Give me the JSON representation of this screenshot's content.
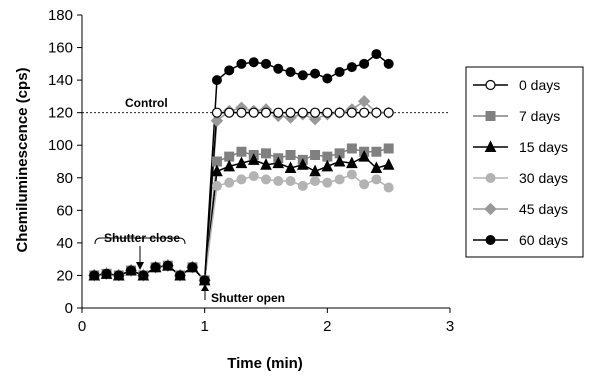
{
  "chart_data": {
    "type": "line",
    "xlabel": "Time (min)",
    "ylabel": "Chemiluminescence (cps)",
    "xlim": [
      0,
      3
    ],
    "ylim": [
      0,
      180
    ],
    "xticks": [
      0,
      1,
      2,
      3
    ],
    "yticks": [
      0,
      20,
      40,
      60,
      80,
      100,
      120,
      140,
      160,
      180
    ],
    "grid": false,
    "legend_position": "right",
    "reference_line": {
      "y": 120,
      "label": "Control",
      "style": "dashed"
    },
    "annotations": [
      {
        "text": "Shutter close",
        "x": 0.5,
        "y": 22
      },
      {
        "text": "Shutter open",
        "x": 1.0,
        "y": 17
      }
    ],
    "x": [
      0.1,
      0.2,
      0.3,
      0.4,
      0.5,
      0.6,
      0.7,
      0.8,
      0.9,
      1.0,
      1.1,
      1.2,
      1.3,
      1.4,
      1.5,
      1.6,
      1.7,
      1.8,
      1.9,
      2.0,
      2.1,
      2.2,
      2.3,
      2.4,
      2.5
    ],
    "series": [
      {
        "name": "0 days",
        "color": "#000000",
        "marker": "circle-open",
        "values": [
          20,
          21,
          20,
          23,
          20,
          25,
          26,
          20,
          25,
          17,
          120,
          120,
          120,
          120,
          120,
          120,
          120,
          120,
          120,
          120,
          120,
          120,
          120,
          120,
          120
        ]
      },
      {
        "name": "7 days",
        "color": "#808080",
        "marker": "square",
        "values": [
          20,
          21,
          20,
          23,
          20,
          25,
          26,
          20,
          25,
          17,
          90,
          93,
          96,
          94,
          95,
          92,
          94,
          91,
          94,
          93,
          95,
          98,
          96,
          96,
          98
        ]
      },
      {
        "name": "15 days",
        "color": "#000000",
        "marker": "triangle",
        "values": [
          20,
          21,
          20,
          23,
          20,
          25,
          26,
          20,
          25,
          17,
          84,
          87,
          89,
          91,
          88,
          89,
          86,
          88,
          84,
          87,
          90,
          89,
          93,
          86,
          88
        ]
      },
      {
        "name": "30 days",
        "color": "#b3b3b3",
        "marker": "circle",
        "values": [
          20,
          21,
          20,
          23,
          20,
          25,
          26,
          20,
          25,
          17,
          75,
          77,
          79,
          81,
          79,
          78,
          78,
          75,
          78,
          77,
          79,
          82,
          76,
          79,
          74
        ]
      },
      {
        "name": "45 days",
        "color": "#999999",
        "marker": "diamond",
        "values": [
          20,
          21,
          20,
          23,
          20,
          25,
          26,
          20,
          25,
          17,
          115,
          121,
          123,
          121,
          122,
          118,
          117,
          119,
          116,
          119,
          120,
          122,
          127,
          120,
          120
        ]
      },
      {
        "name": "60 days",
        "color": "#000000",
        "marker": "circle",
        "values": [
          20,
          21,
          20,
          23,
          20,
          25,
          26,
          20,
          25,
          17,
          140,
          146,
          150,
          151,
          150,
          147,
          145,
          143,
          144,
          141,
          145,
          148,
          150,
          156,
          150
        ]
      }
    ]
  }
}
